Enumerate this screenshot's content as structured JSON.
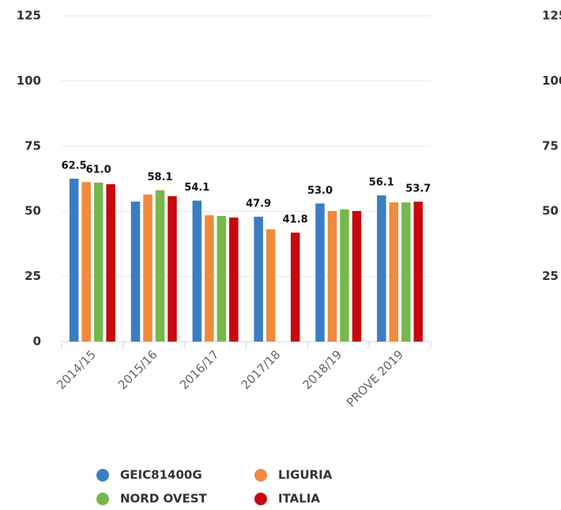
{
  "chart_data": [
    {
      "type": "bar",
      "categories": [
        "2014/15",
        "2015/16",
        "2016/17",
        "2017/18",
        "2018/19",
        "PROVE 2019"
      ],
      "series": [
        {
          "name": "GEIC81400G",
          "color": "#3b7dc3",
          "values": [
            62.5,
            53.7,
            54.1,
            47.9,
            53.0,
            56.1
          ],
          "value_labels": [
            "62.5",
            null,
            "54.1",
            "47.9",
            "53.0",
            "56.1"
          ]
        },
        {
          "name": "LIGURIA",
          "color": "#f08a3c",
          "values": [
            61.2,
            56.4,
            48.5,
            43.1,
            50.1,
            53.4
          ]
        },
        {
          "name": "NORD OVEST",
          "color": "#76b84b",
          "values": [
            61.0,
            58.1,
            48.2,
            null,
            50.7,
            53.4
          ],
          "value_labels": [
            "61.0",
            "58.1",
            null,
            null,
            null,
            null
          ]
        },
        {
          "name": "ITALIA",
          "color": "#c7080e",
          "values": [
            60.4,
            55.8,
            47.6,
            41.8,
            50.1,
            53.7
          ],
          "value_labels": [
            null,
            null,
            null,
            "41.8",
            null,
            "53.7"
          ]
        }
      ],
      "ylim": [
        0,
        125
      ],
      "yticks": [
        0,
        25,
        50,
        75,
        100,
        125
      ],
      "grid": true,
      "legend": "bottom"
    },
    {
      "type": "bar",
      "ylim": [
        0,
        125
      ],
      "yticks": [
        25,
        50,
        75,
        100,
        125
      ]
    }
  ]
}
